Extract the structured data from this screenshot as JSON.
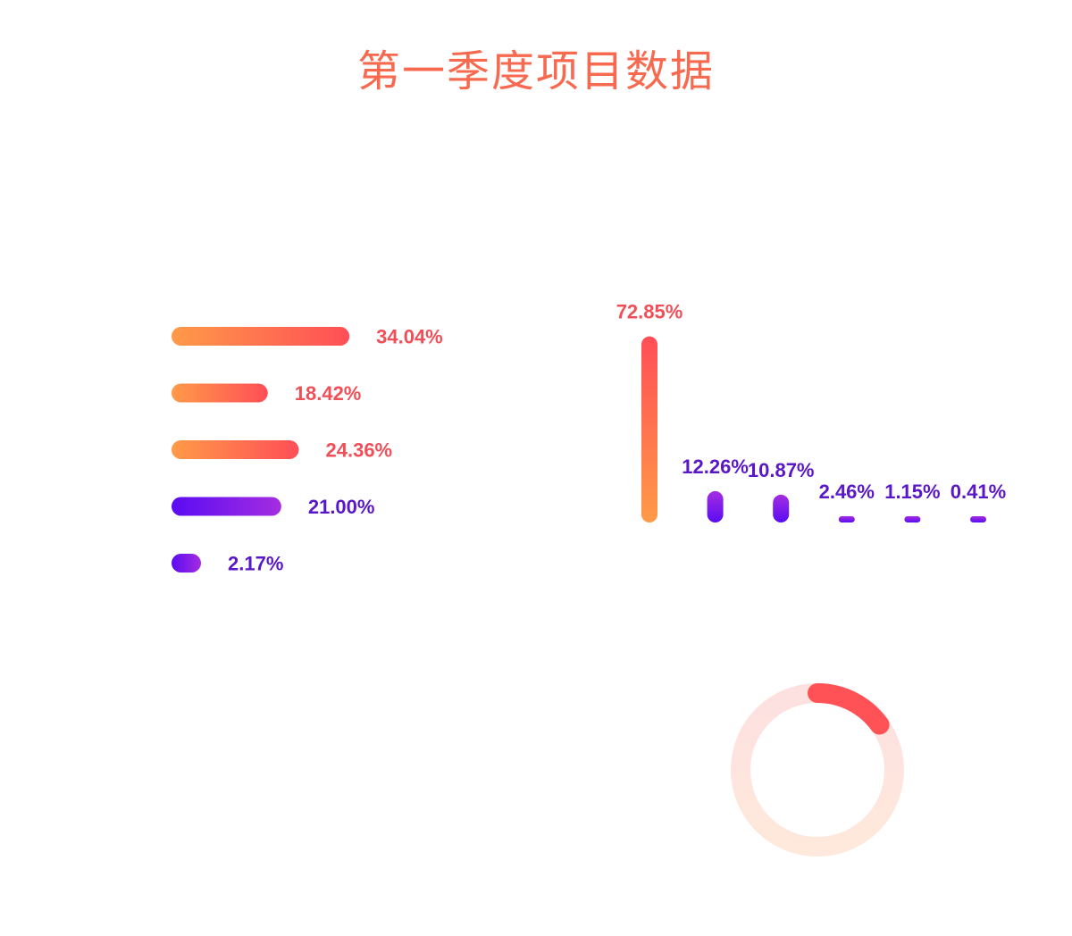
{
  "title": "第一季度项目数据",
  "colors": {
    "title": "#f76a4f",
    "warm_start": "#ff9a48",
    "warm_end": "#ff4e57",
    "cool_start": "#5a0cf2",
    "cool_end": "#a42de0",
    "warm_label": "#f04f58",
    "cool_label": "#5a17c7",
    "ring_track_top": "#fde0e0",
    "ring_track_bottom": "#fee9dc",
    "ring_arc": "#ff5257"
  },
  "chart_data": [
    {
      "type": "bar",
      "orientation": "horizontal",
      "title": "",
      "xlabel": "",
      "ylabel": "",
      "unit": "%",
      "series": [
        {
          "values": [
            34.04,
            18.42,
            24.36,
            21.0,
            2.17
          ],
          "labels": [
            "34.04%",
            "18.42%",
            "24.36%",
            "21.00%",
            "2.17%"
          ],
          "color_groups": [
            "warm",
            "warm",
            "warm",
            "cool",
            "cool"
          ]
        }
      ],
      "grid": false,
      "legend": "none"
    },
    {
      "type": "bar",
      "orientation": "vertical",
      "title": "",
      "xlabel": "",
      "ylabel": "",
      "unit": "%",
      "series": [
        {
          "values": [
            72.85,
            12.26,
            10.87,
            2.46,
            1.15,
            0.41
          ],
          "labels": [
            "72.85%",
            "12.26%",
            "10.87%",
            "2.46%",
            "1.15%",
            "0.41%"
          ],
          "color_groups": [
            "warm",
            "cool",
            "cool",
            "cool",
            "cool",
            "cool"
          ]
        }
      ],
      "grid": false,
      "legend": "none"
    },
    {
      "type": "pie",
      "style": "donut",
      "title": "",
      "series": [
        {
          "values": [
            15,
            85
          ],
          "highlighted": [
            true,
            false
          ]
        }
      ],
      "legend": "none"
    }
  ]
}
